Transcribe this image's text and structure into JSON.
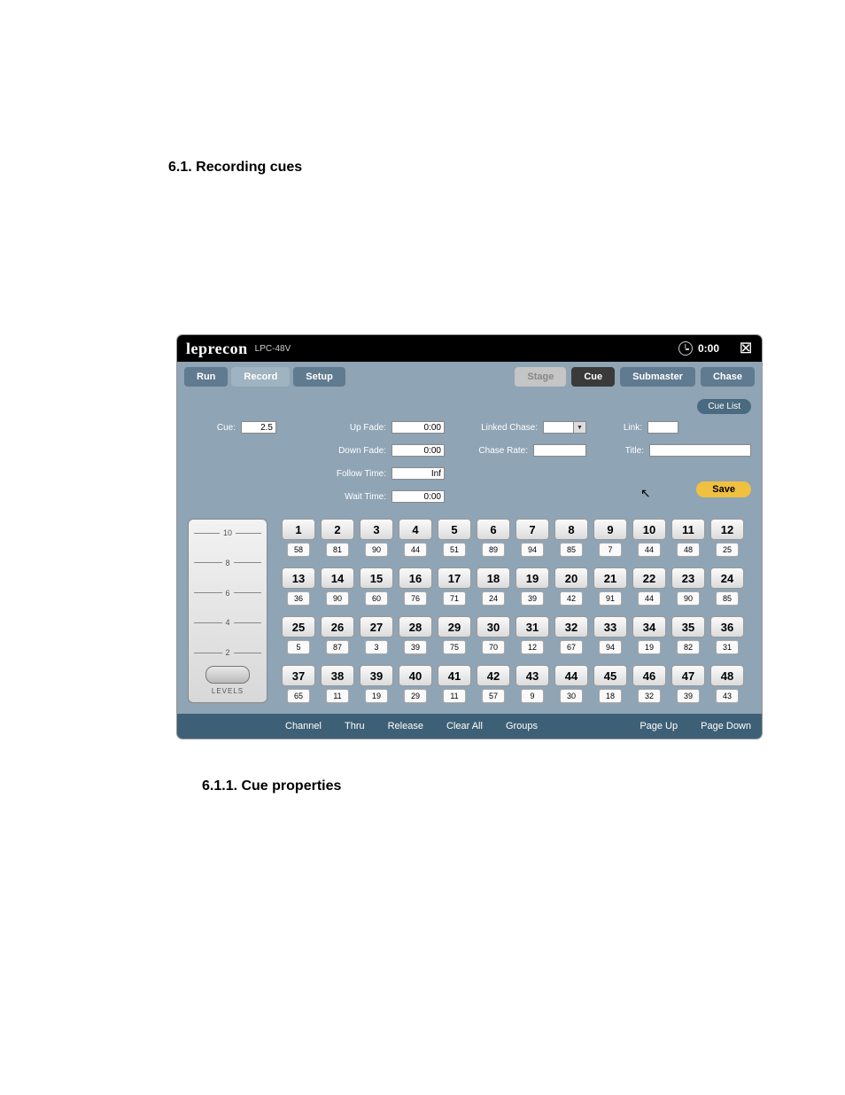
{
  "doc": {
    "heading1": "6.1. Recording cues",
    "heading2": "6.1.1. Cue properties"
  },
  "titlebar": {
    "brand": "leprecon",
    "model": "LPC-48V",
    "clock": "0:00"
  },
  "tabs": {
    "left": [
      "Run",
      "Record",
      "Setup"
    ],
    "right": [
      "Stage",
      "Cue",
      "Submaster",
      "Chase"
    ]
  },
  "cuelist_btn": "Cue List",
  "params": {
    "cue_label": "Cue:",
    "cue_value": "2.5",
    "upfade_label": "Up Fade:",
    "upfade_value": "0:00",
    "downfade_label": "Down Fade:",
    "downfade_value": "0:00",
    "follow_label": "Follow Time:",
    "follow_value": "Inf",
    "wait_label": "Wait Time:",
    "wait_value": "0:00",
    "linked_label": "Linked Chase:",
    "linked_value": "",
    "chaserate_label": "Chase Rate:",
    "chaserate_value": "",
    "link_label": "Link:",
    "link_value": "",
    "title_label": "Title:",
    "title_value": "",
    "save_label": "Save"
  },
  "fader": {
    "ticks": [
      "10",
      "8",
      "6",
      "4",
      "2"
    ],
    "label": "LEVELS"
  },
  "channels": [
    [
      {
        "n": "1",
        "v": "58"
      },
      {
        "n": "2",
        "v": "81"
      },
      {
        "n": "3",
        "v": "90"
      },
      {
        "n": "4",
        "v": "44"
      },
      {
        "n": "5",
        "v": "51"
      },
      {
        "n": "6",
        "v": "89"
      },
      {
        "n": "7",
        "v": "94"
      },
      {
        "n": "8",
        "v": "85"
      },
      {
        "n": "9",
        "v": "7"
      },
      {
        "n": "10",
        "v": "44"
      },
      {
        "n": "11",
        "v": "48"
      },
      {
        "n": "12",
        "v": "25"
      }
    ],
    [
      {
        "n": "13",
        "v": "36"
      },
      {
        "n": "14",
        "v": "90"
      },
      {
        "n": "15",
        "v": "60"
      },
      {
        "n": "16",
        "v": "76"
      },
      {
        "n": "17",
        "v": "71"
      },
      {
        "n": "18",
        "v": "24"
      },
      {
        "n": "19",
        "v": "39"
      },
      {
        "n": "20",
        "v": "42"
      },
      {
        "n": "21",
        "v": "91"
      },
      {
        "n": "22",
        "v": "44"
      },
      {
        "n": "23",
        "v": "90"
      },
      {
        "n": "24",
        "v": "85"
      }
    ],
    [
      {
        "n": "25",
        "v": "5"
      },
      {
        "n": "26",
        "v": "87"
      },
      {
        "n": "27",
        "v": "3"
      },
      {
        "n": "28",
        "v": "39"
      },
      {
        "n": "29",
        "v": "75"
      },
      {
        "n": "30",
        "v": "70"
      },
      {
        "n": "31",
        "v": "12"
      },
      {
        "n": "32",
        "v": "67"
      },
      {
        "n": "33",
        "v": "94"
      },
      {
        "n": "34",
        "v": "19"
      },
      {
        "n": "35",
        "v": "82"
      },
      {
        "n": "36",
        "v": "31"
      }
    ],
    [
      {
        "n": "37",
        "v": "65"
      },
      {
        "n": "38",
        "v": "11"
      },
      {
        "n": "39",
        "v": "19"
      },
      {
        "n": "40",
        "v": "29"
      },
      {
        "n": "41",
        "v": "11"
      },
      {
        "n": "42",
        "v": "57"
      },
      {
        "n": "43",
        "v": "9"
      },
      {
        "n": "44",
        "v": "30"
      },
      {
        "n": "45",
        "v": "18"
      },
      {
        "n": "46",
        "v": "32"
      },
      {
        "n": "47",
        "v": "39"
      },
      {
        "n": "48",
        "v": "43"
      }
    ]
  ],
  "bottombar": {
    "left": [
      "Channel",
      "Thru",
      "Release",
      "Clear All",
      "Groups"
    ],
    "right": [
      "Page Up",
      "Page Down"
    ]
  }
}
